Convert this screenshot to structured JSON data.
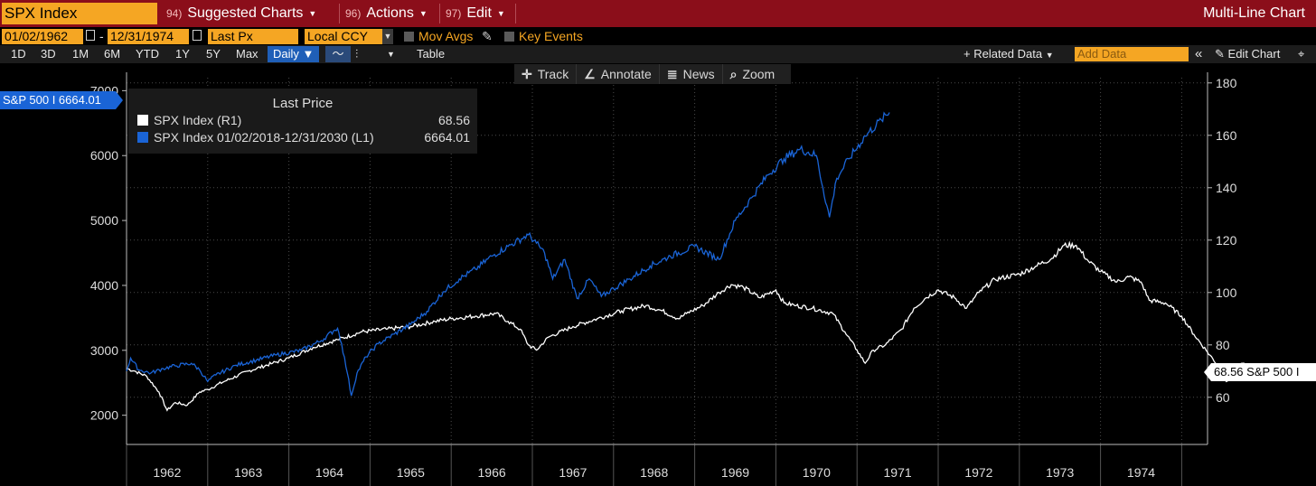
{
  "header": {
    "ticker": "SPX Index",
    "menus": [
      {
        "num": "94)",
        "label": "Suggested Charts"
      },
      {
        "num": "96)",
        "label": "Actions"
      },
      {
        "num": "97)",
        "label": "Edit"
      }
    ],
    "title": "Multi-Line Chart"
  },
  "controls": {
    "start_date": "01/02/1962",
    "end_date": "12/31/1974",
    "dash": "-",
    "field": "Last Px",
    "currency": "Local CCY",
    "mov_avgs": "Mov Avgs",
    "key_events": "Key Events"
  },
  "toolbar": {
    "ranges": [
      "1D",
      "3D",
      "1M",
      "6M",
      "YTD",
      "1Y",
      "5Y",
      "Max"
    ],
    "frequency": "Daily",
    "table": "Table",
    "related": "+ Related Data",
    "add_data_placeholder": "Add Data",
    "edit_chart": "Edit Chart"
  },
  "chart_tools": {
    "track": "Track",
    "annotate": "Annotate",
    "news": "News",
    "zoom": "Zoom"
  },
  "legend": {
    "title": "Last Price",
    "rows": [
      {
        "name": "SPX Index  (R1)",
        "value": "68.56",
        "color": "#ffffff"
      },
      {
        "name": "SPX Index 01/02/2018-12/31/2030  (L1)",
        "value": "6664.01",
        "color": "#1a64d6"
      }
    ]
  },
  "tags": {
    "left": "S&P 500 I 6664.01",
    "right": "68.56 S&P 500 I"
  },
  "chart_data": {
    "type": "line",
    "x_labels": [
      "1962",
      "1963",
      "1964",
      "1965",
      "1966",
      "1967",
      "1968",
      "1969",
      "1970",
      "1971",
      "1972",
      "1973",
      "1974"
    ],
    "left_axis": {
      "ticks": [
        2000,
        3000,
        4000,
        5000,
        6000,
        7000
      ],
      "range": [
        1550,
        7200
      ]
    },
    "right_axis": {
      "ticks": [
        60,
        80,
        100,
        120,
        140,
        160,
        180
      ],
      "range": [
        42,
        182
      ]
    },
    "grid": true,
    "series": [
      {
        "name": "SPX Index (R1)",
        "axis": "right",
        "color": "#ffffff",
        "points": [
          [
            0,
            71
          ],
          [
            0.1,
            70
          ],
          [
            0.25,
            68
          ],
          [
            0.4,
            62
          ],
          [
            0.5,
            55
          ],
          [
            0.6,
            58
          ],
          [
            0.75,
            57
          ],
          [
            0.9,
            62
          ],
          [
            1.0,
            63
          ],
          [
            1.2,
            66
          ],
          [
            1.5,
            70
          ],
          [
            1.8,
            73
          ],
          [
            2.0,
            75
          ],
          [
            2.3,
            79
          ],
          [
            2.6,
            82
          ],
          [
            2.9,
            85
          ],
          [
            3.2,
            86
          ],
          [
            3.5,
            87
          ],
          [
            3.8,
            89
          ],
          [
            4.0,
            90
          ],
          [
            4.3,
            91
          ],
          [
            4.55,
            92
          ],
          [
            4.7,
            89
          ],
          [
            4.85,
            86
          ],
          [
            4.95,
            80
          ],
          [
            5.05,
            78
          ],
          [
            5.2,
            83
          ],
          [
            5.5,
            87
          ],
          [
            5.8,
            90
          ],
          [
            6.1,
            93
          ],
          [
            6.4,
            95
          ],
          [
            6.6,
            93
          ],
          [
            6.8,
            90
          ],
          [
            6.9,
            92
          ],
          [
            7.1,
            95
          ],
          [
            7.3,
            100
          ],
          [
            7.45,
            103
          ],
          [
            7.6,
            102
          ],
          [
            7.8,
            98
          ],
          [
            8.0,
            101
          ],
          [
            8.1,
            96
          ],
          [
            8.25,
            95
          ],
          [
            8.45,
            94
          ],
          [
            8.7,
            92
          ],
          [
            8.85,
            85
          ],
          [
            9.0,
            78
          ],
          [
            9.1,
            73
          ],
          [
            9.2,
            78
          ],
          [
            9.35,
            80
          ],
          [
            9.55,
            86
          ],
          [
            9.7,
            94
          ],
          [
            9.85,
            98
          ],
          [
            10.0,
            101
          ],
          [
            10.2,
            98
          ],
          [
            10.35,
            94
          ],
          [
            10.5,
            100
          ],
          [
            10.7,
            105
          ],
          [
            11.0,
            107
          ],
          [
            11.2,
            110
          ],
          [
            11.4,
            113
          ],
          [
            11.55,
            118
          ],
          [
            11.7,
            118
          ],
          [
            11.85,
            112
          ],
          [
            12.0,
            108
          ],
          [
            12.2,
            104
          ],
          [
            12.35,
            106
          ],
          [
            12.5,
            104
          ],
          [
            12.6,
            97
          ],
          [
            12.8,
            96
          ],
          [
            13.0,
            91
          ],
          [
            13.15,
            84
          ],
          [
            13.3,
            78
          ],
          [
            13.45,
            72
          ],
          [
            13.55,
            66
          ],
          [
            13.65,
            69
          ],
          [
            13.75,
            73
          ],
          [
            13.85,
            70
          ],
          [
            13.95,
            67
          ],
          [
            14.05,
            68.56
          ]
        ]
      },
      {
        "name": "SPX Index 01/02/2018-12/31/2030 (L1)",
        "axis": "left",
        "color": "#1a64d6",
        "points": [
          [
            0,
            2680
          ],
          [
            0.05,
            2880
          ],
          [
            0.15,
            2700
          ],
          [
            0.3,
            2650
          ],
          [
            0.45,
            2720
          ],
          [
            0.6,
            2760
          ],
          [
            0.8,
            2800
          ],
          [
            0.9,
            2700
          ],
          [
            1.0,
            2520
          ],
          [
            1.1,
            2620
          ],
          [
            1.35,
            2770
          ],
          [
            1.6,
            2850
          ],
          [
            1.85,
            2930
          ],
          [
            2.15,
            3000
          ],
          [
            2.4,
            3150
          ],
          [
            2.55,
            3300
          ],
          [
            2.6,
            3340
          ],
          [
            2.65,
            3100
          ],
          [
            2.72,
            2650
          ],
          [
            2.77,
            2300
          ],
          [
            2.84,
            2650
          ],
          [
            2.95,
            2900
          ],
          [
            3.1,
            3100
          ],
          [
            3.3,
            3250
          ],
          [
            3.5,
            3400
          ],
          [
            3.7,
            3600
          ],
          [
            3.9,
            3900
          ],
          [
            4.1,
            4100
          ],
          [
            4.3,
            4250
          ],
          [
            4.5,
            4450
          ],
          [
            4.7,
            4600
          ],
          [
            4.95,
            4780
          ],
          [
            5.05,
            4650
          ],
          [
            5.15,
            4500
          ],
          [
            5.25,
            4100
          ],
          [
            5.4,
            4400
          ],
          [
            5.55,
            3800
          ],
          [
            5.7,
            4100
          ],
          [
            5.85,
            3830
          ],
          [
            6.0,
            3950
          ],
          [
            6.2,
            4100
          ],
          [
            6.45,
            4300
          ],
          [
            6.7,
            4450
          ],
          [
            7.0,
            4600
          ],
          [
            7.3,
            4400
          ],
          [
            7.5,
            5000
          ],
          [
            7.7,
            5350
          ],
          [
            7.9,
            5700
          ],
          [
            8.1,
            5950
          ],
          [
            8.3,
            6100
          ],
          [
            8.5,
            6000
          ],
          [
            8.58,
            5500
          ],
          [
            8.66,
            5050
          ],
          [
            8.75,
            5650
          ],
          [
            8.9,
            5950
          ],
          [
            9.1,
            6300
          ],
          [
            9.3,
            6550
          ],
          [
            9.4,
            6664.01
          ]
        ]
      }
    ]
  }
}
